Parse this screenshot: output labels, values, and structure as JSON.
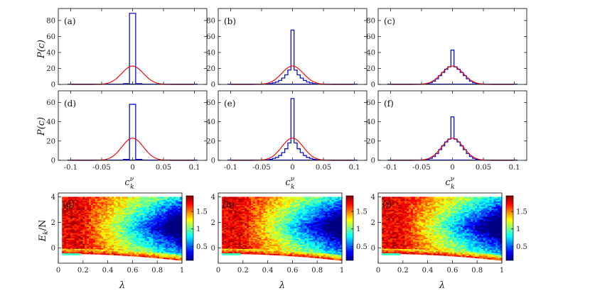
{
  "figure": {
    "histogram_xlabel": "c_k^ν",
    "histogram_xlabel_main": "c",
    "histogram_xlabel_sub": "k",
    "histogram_xlabel_sup": "ν",
    "histogram_ylabel": "P(c)",
    "heatmap_xlabel": "λ",
    "heatmap_ylabel": "E_k/N",
    "heatmap_ylabel_main": "E",
    "heatmap_ylabel_sub": "k",
    "heatmap_ylabel_rest": "/N"
  },
  "colors": {
    "histogram_line": "#1010c8",
    "gaussian_line": "#e81010",
    "axis": "#000000"
  },
  "chart_data": [
    {
      "type": "bar",
      "panel": "(a)",
      "xlim": [
        -0.12,
        0.12
      ],
      "ylim": [
        0,
        95
      ],
      "xticks": [
        -0.1,
        -0.05,
        0,
        0.05,
        0.1
      ],
      "yticks": [
        0,
        20,
        40,
        60,
        80
      ],
      "bin_width": 0.01,
      "bins": [
        {
          "x": 0,
          "value": 89
        },
        {
          "x": -0.01,
          "value": 1
        },
        {
          "x": 0.01,
          "value": 1
        }
      ],
      "gaussian": {
        "amplitude": 23,
        "sigma": 0.0173
      }
    },
    {
      "type": "bar",
      "panel": "(b)",
      "xlim": [
        -0.12,
        0.12
      ],
      "ylim": [
        0,
        95
      ],
      "xticks": [
        -0.1,
        -0.05,
        0,
        0.05,
        0.1
      ],
      "yticks": [
        0,
        20,
        40,
        60,
        80
      ],
      "bin_width": 0.005,
      "bins": [
        {
          "x": -0.04,
          "value": 0.5
        },
        {
          "x": -0.035,
          "value": 1
        },
        {
          "x": -0.03,
          "value": 2
        },
        {
          "x": -0.025,
          "value": 3
        },
        {
          "x": -0.02,
          "value": 5
        },
        {
          "x": -0.015,
          "value": 8
        },
        {
          "x": -0.01,
          "value": 12
        },
        {
          "x": -0.005,
          "value": 18
        },
        {
          "x": 0,
          "value": 68
        },
        {
          "x": 0.005,
          "value": 18
        },
        {
          "x": 0.01,
          "value": 12
        },
        {
          "x": 0.015,
          "value": 8
        },
        {
          "x": 0.02,
          "value": 5
        },
        {
          "x": 0.025,
          "value": 3
        },
        {
          "x": 0.03,
          "value": 2
        },
        {
          "x": 0.035,
          "value": 1
        },
        {
          "x": 0.04,
          "value": 0.5
        }
      ],
      "gaussian": {
        "amplitude": 23,
        "sigma": 0.0173
      }
    },
    {
      "type": "bar",
      "panel": "(c)",
      "xlim": [
        -0.12,
        0.12
      ],
      "ylim": [
        0,
        95
      ],
      "xticks": [
        -0.1,
        -0.05,
        0,
        0.05,
        0.1
      ],
      "yticks": [
        0,
        20,
        40,
        60,
        80
      ],
      "bin_width": 0.005,
      "bins": [
        {
          "x": -0.045,
          "value": 0.5
        },
        {
          "x": -0.04,
          "value": 1
        },
        {
          "x": -0.035,
          "value": 2
        },
        {
          "x": -0.03,
          "value": 4
        },
        {
          "x": -0.025,
          "value": 7
        },
        {
          "x": -0.02,
          "value": 11
        },
        {
          "x": -0.015,
          "value": 15
        },
        {
          "x": -0.01,
          "value": 19
        },
        {
          "x": -0.005,
          "value": 22
        },
        {
          "x": 0,
          "value": 43
        },
        {
          "x": 0.005,
          "value": 22
        },
        {
          "x": 0.01,
          "value": 19
        },
        {
          "x": 0.015,
          "value": 15
        },
        {
          "x": 0.02,
          "value": 11
        },
        {
          "x": 0.025,
          "value": 7
        },
        {
          "x": 0.03,
          "value": 4
        },
        {
          "x": 0.035,
          "value": 2
        },
        {
          "x": 0.04,
          "value": 1
        },
        {
          "x": 0.045,
          "value": 0.5
        }
      ],
      "gaussian": {
        "amplitude": 23,
        "sigma": 0.0173
      }
    },
    {
      "type": "bar",
      "panel": "(d)",
      "xlim": [
        -0.12,
        0.12
      ],
      "ylim": [
        0,
        72
      ],
      "xticks": [
        -0.1,
        -0.05,
        0,
        0.05,
        0.1
      ],
      "yticks": [
        0,
        20,
        40,
        60
      ],
      "bin_width": 0.01,
      "bins": [
        {
          "x": 0,
          "value": 58
        },
        {
          "x": -0.01,
          "value": 1
        },
        {
          "x": 0.01,
          "value": 1
        }
      ],
      "gaussian": {
        "amplitude": 23,
        "sigma": 0.0173
      }
    },
    {
      "type": "bar",
      "panel": "(e)",
      "xlim": [
        -0.12,
        0.12
      ],
      "ylim": [
        0,
        72
      ],
      "xticks": [
        -0.1,
        -0.05,
        0,
        0.05,
        0.1
      ],
      "yticks": [
        0,
        20,
        40,
        60
      ],
      "bin_width": 0.005,
      "bins": [
        {
          "x": -0.04,
          "value": 0.5
        },
        {
          "x": -0.035,
          "value": 1
        },
        {
          "x": -0.03,
          "value": 2
        },
        {
          "x": -0.025,
          "value": 3
        },
        {
          "x": -0.02,
          "value": 5
        },
        {
          "x": -0.015,
          "value": 8
        },
        {
          "x": -0.01,
          "value": 12
        },
        {
          "x": -0.005,
          "value": 18
        },
        {
          "x": 0,
          "value": 64
        },
        {
          "x": 0.005,
          "value": 18
        },
        {
          "x": 0.01,
          "value": 12
        },
        {
          "x": 0.015,
          "value": 8
        },
        {
          "x": 0.02,
          "value": 5
        },
        {
          "x": 0.025,
          "value": 3
        },
        {
          "x": 0.03,
          "value": 2
        },
        {
          "x": 0.035,
          "value": 1
        },
        {
          "x": 0.04,
          "value": 0.5
        }
      ],
      "gaussian": {
        "amplitude": 23,
        "sigma": 0.0173
      }
    },
    {
      "type": "bar",
      "panel": "(f)",
      "xlim": [
        -0.12,
        0.12
      ],
      "ylim": [
        0,
        72
      ],
      "xticks": [
        -0.1,
        -0.05,
        0,
        0.05,
        0.1
      ],
      "yticks": [
        0,
        20,
        40,
        60
      ],
      "bin_width": 0.005,
      "bins": [
        {
          "x": -0.045,
          "value": 0.5
        },
        {
          "x": -0.04,
          "value": 1
        },
        {
          "x": -0.035,
          "value": 2
        },
        {
          "x": -0.03,
          "value": 4
        },
        {
          "x": -0.025,
          "value": 7
        },
        {
          "x": -0.02,
          "value": 11
        },
        {
          "x": -0.015,
          "value": 15
        },
        {
          "x": -0.01,
          "value": 19
        },
        {
          "x": -0.005,
          "value": 22
        },
        {
          "x": 0,
          "value": 45
        },
        {
          "x": 0.005,
          "value": 22
        },
        {
          "x": 0.01,
          "value": 19
        },
        {
          "x": 0.015,
          "value": 15
        },
        {
          "x": 0.02,
          "value": 11
        },
        {
          "x": 0.025,
          "value": 7
        },
        {
          "x": 0.03,
          "value": 4
        },
        {
          "x": 0.035,
          "value": 2
        },
        {
          "x": 0.04,
          "value": 1
        },
        {
          "x": 0.045,
          "value": 0.5
        }
      ],
      "gaussian": {
        "amplitude": 23,
        "sigma": 0.0173
      }
    },
    {
      "type": "heatmap",
      "panel": "(g)",
      "xlim": [
        0,
        1
      ],
      "ylim": [
        -1.2,
        4.3
      ],
      "xticks": [
        0,
        0.2,
        0.4,
        0.6,
        0.8,
        1
      ],
      "yticks": [
        0,
        2,
        4
      ],
      "colorbar": {
        "range": [
          0.1,
          1.95
        ],
        "ticks": [
          0.5,
          1,
          1.5
        ]
      }
    },
    {
      "type": "heatmap",
      "panel": "(h)",
      "xlim": [
        0,
        1
      ],
      "ylim": [
        -1.2,
        4.3
      ],
      "xticks": [
        0,
        0.2,
        0.4,
        0.6,
        0.8,
        1
      ],
      "yticks": [
        0,
        2,
        4
      ],
      "colorbar": {
        "range": [
          0.1,
          1.95
        ],
        "ticks": [
          0.5,
          1,
          1.5
        ]
      }
    },
    {
      "type": "heatmap",
      "panel": "(i)",
      "xlim": [
        0,
        1
      ],
      "ylim": [
        -1.2,
        4.3
      ],
      "xticks": [
        0,
        0.2,
        0.4,
        0.6,
        0.8,
        1
      ],
      "yticks": [
        0,
        2,
        4
      ],
      "colorbar": {
        "range": [
          0.1,
          1.95
        ],
        "ticks": [
          0.5,
          1,
          1.5
        ]
      }
    }
  ]
}
